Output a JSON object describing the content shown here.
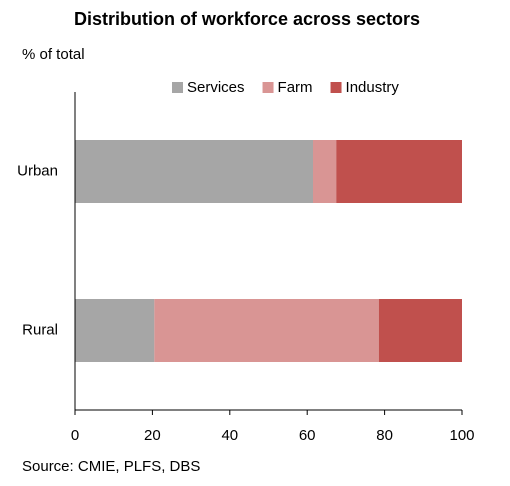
{
  "chart_data": {
    "type": "stacked_barh",
    "title": "Distribution of workforce across sectors",
    "subtitle": "% of total",
    "source": "Source: CMIE, PLFS, DBS",
    "categories": [
      "Urban",
      "Rural"
    ],
    "series": [
      {
        "name": "Services",
        "color": "#a6a6a6",
        "values": [
          61.5,
          20.5
        ]
      },
      {
        "name": "Farm",
        "color": "#d99594",
        "values": [
          6,
          58
        ]
      },
      {
        "name": "Industry",
        "color": "#c0504d",
        "values": [
          32.5,
          21.5
        ]
      }
    ],
    "xlim": [
      0,
      100
    ],
    "xticks": [
      0,
      20,
      40,
      60,
      80,
      100
    ],
    "legend": "top"
  }
}
